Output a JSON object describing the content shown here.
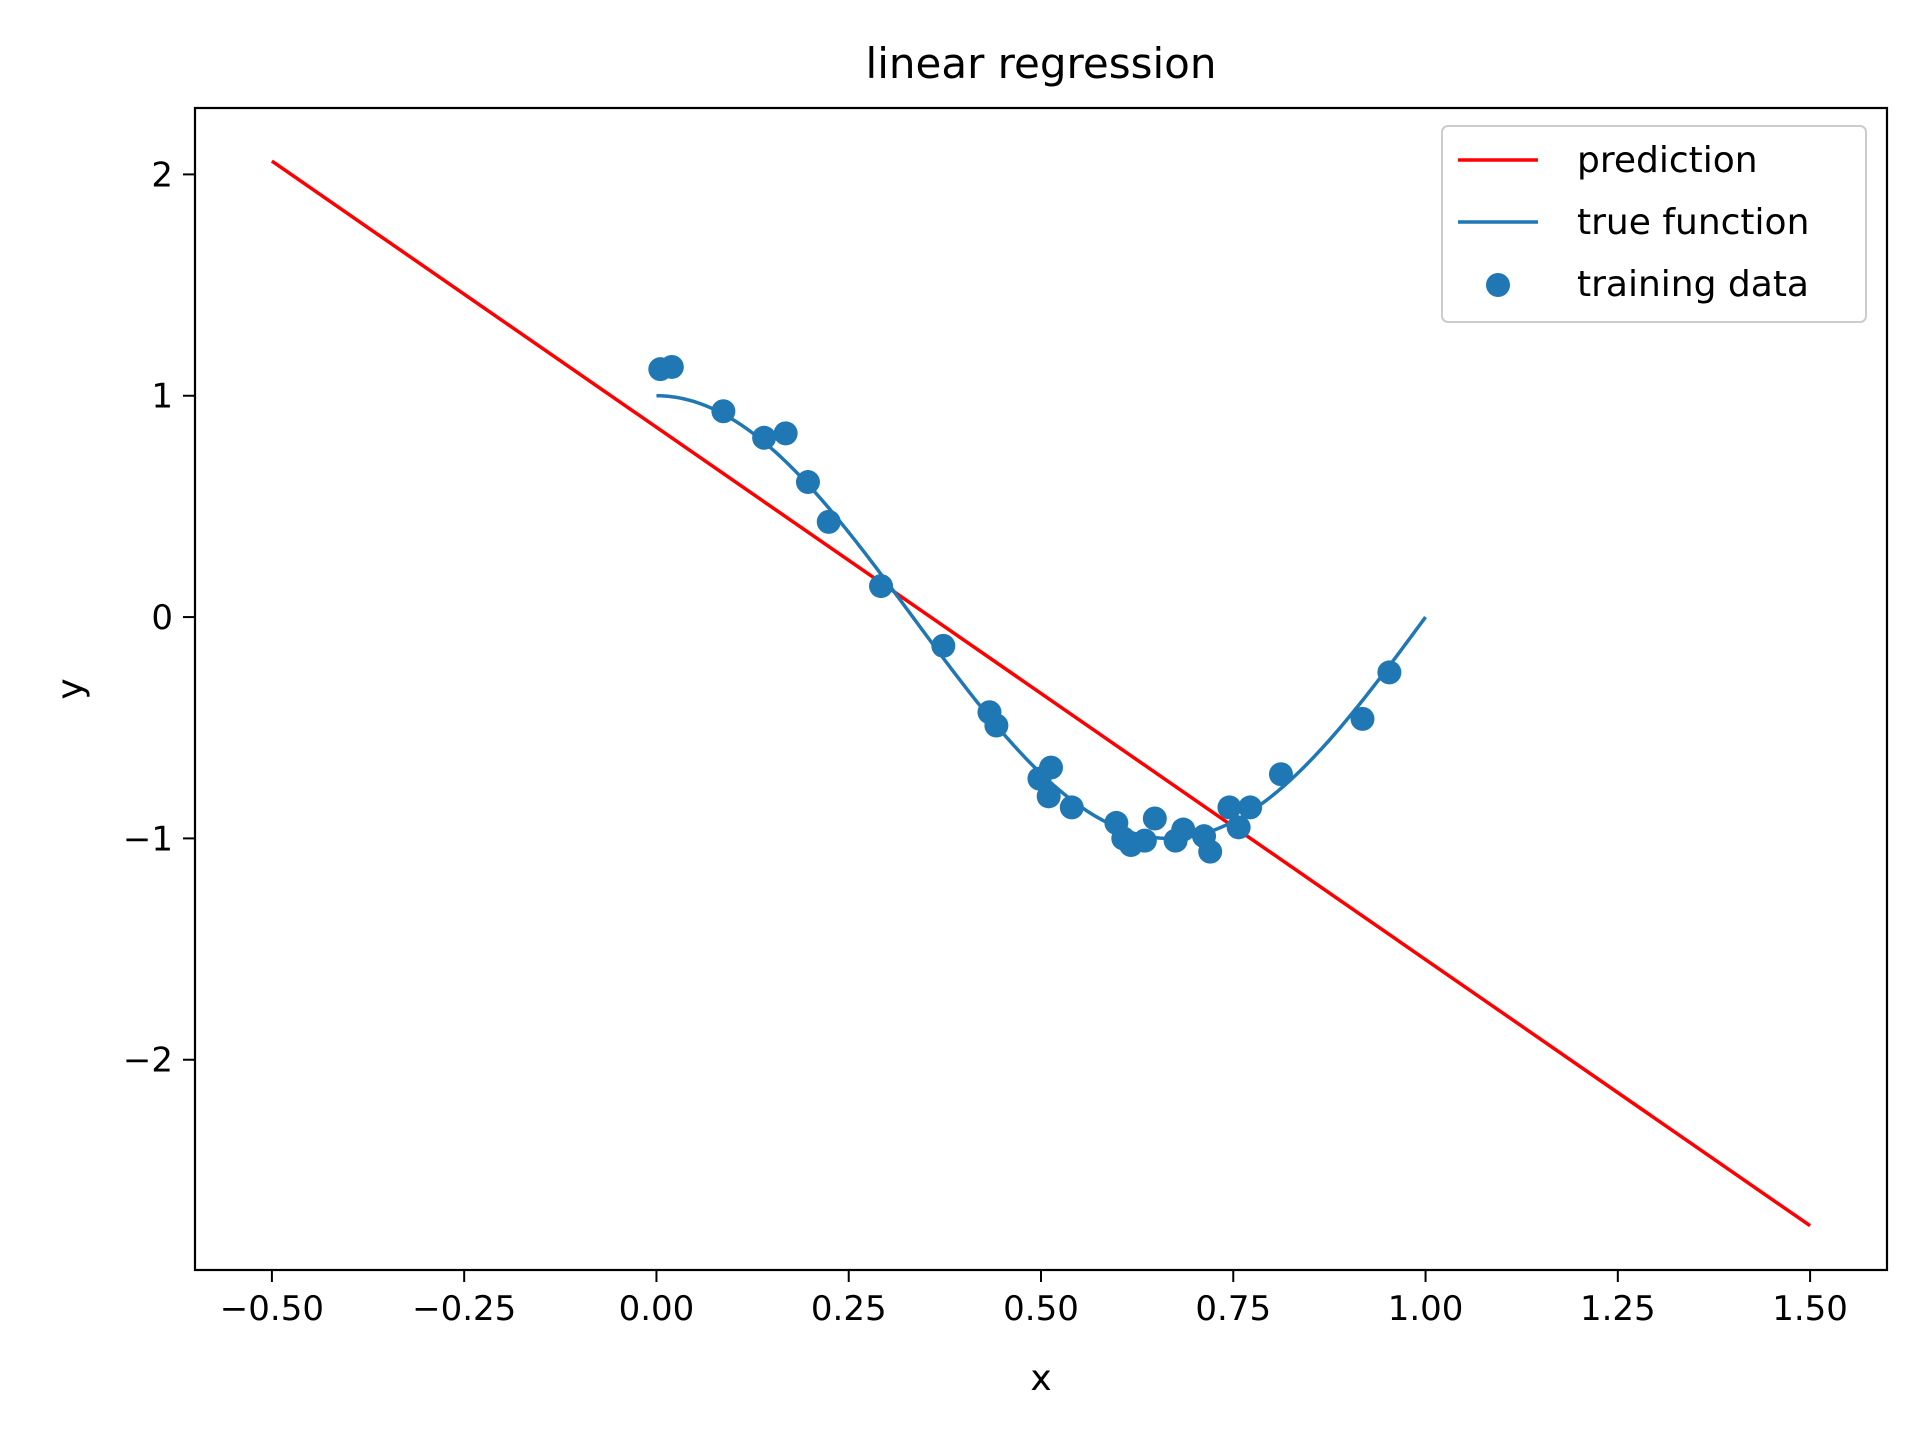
{
  "chart_data": {
    "type": "line",
    "title": "linear regression",
    "xlabel": "x",
    "ylabel": "y",
    "xlim": [
      -0.6,
      1.6
    ],
    "ylim": [
      -2.95,
      2.3
    ],
    "xticks": [
      -0.5,
      -0.25,
      0.0,
      0.25,
      0.5,
      0.75,
      1.0,
      1.25,
      1.5
    ],
    "xtick_labels": [
      "−0.50",
      "−0.25",
      "0.00",
      "0.25",
      "0.50",
      "0.75",
      "1.00",
      "1.25",
      "1.50"
    ],
    "yticks": [
      2,
      1,
      0,
      -1,
      -2
    ],
    "ytick_labels": [
      "2",
      "1",
      "0",
      "−1",
      "−2"
    ],
    "grid": false,
    "legend_position": "top-right",
    "colors": {
      "prediction": "#ff0000",
      "true_function": "#1f77b4",
      "training_data": "#1f77b4"
    },
    "series": [
      {
        "name": "prediction",
        "type": "line",
        "x": [
          -0.5,
          1.5
        ],
        "y": [
          2.06,
          -2.75
        ]
      },
      {
        "name": "true function",
        "type": "line",
        "function": "cos(1.5*pi*x)",
        "x_range": [
          0.0,
          1.0
        ]
      },
      {
        "name": "training data",
        "type": "scatter",
        "x": [
          0.005,
          0.02,
          0.087,
          0.14,
          0.168,
          0.197,
          0.224,
          0.292,
          0.373,
          0.433,
          0.442,
          0.498,
          0.51,
          0.513,
          0.54,
          0.598,
          0.607,
          0.617,
          0.635,
          0.648,
          0.675,
          0.685,
          0.712,
          0.72,
          0.745,
          0.757,
          0.772,
          0.812,
          0.918,
          0.953
        ],
        "y": [
          1.12,
          1.13,
          0.93,
          0.81,
          0.83,
          0.61,
          0.43,
          0.14,
          -0.13,
          -0.43,
          -0.49,
          -0.73,
          -0.81,
          -0.68,
          -0.86,
          -0.93,
          -1.0,
          -1.03,
          -1.01,
          -0.91,
          -1.01,
          -0.96,
          -0.99,
          -1.06,
          -0.86,
          -0.95,
          -0.86,
          -0.71,
          -0.46,
          -0.25
        ]
      }
    ]
  }
}
